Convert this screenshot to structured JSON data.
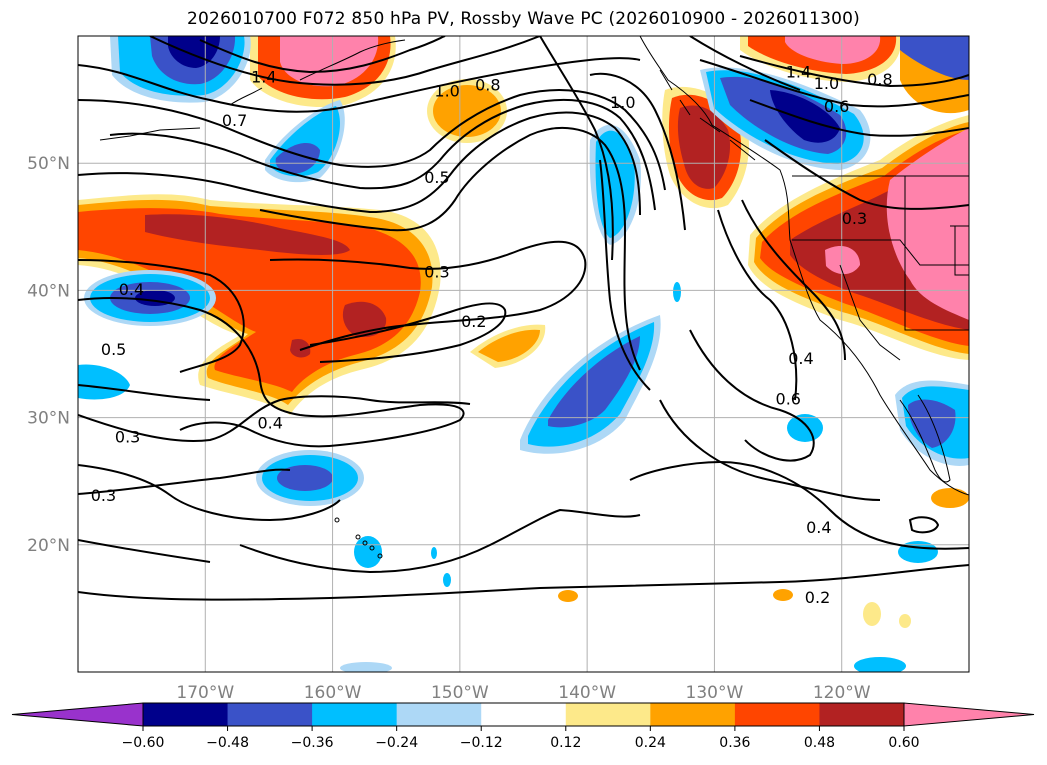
{
  "title": "2026010700 F072 850 hPa PV, Rossby Wave PC (2026010900 - 2026011300)",
  "map": {
    "lon_range": [
      -180,
      -110
    ],
    "lat_range": [
      10,
      60
    ],
    "lon_ticks": [
      -170,
      -160,
      -150,
      -140,
      -130,
      -120
    ],
    "lon_tick_labels": [
      "170°W",
      "160°W",
      "150°W",
      "140°W",
      "130°W",
      "120°W"
    ],
    "lat_ticks": [
      20,
      30,
      40,
      50
    ],
    "lat_tick_labels": [
      "20°N",
      "30°N",
      "40°N",
      "50°N"
    ],
    "grid": true
  },
  "colorbar": {
    "levels": [
      -0.6,
      -0.48,
      -0.36,
      -0.24,
      -0.12,
      0.12,
      0.24,
      0.36,
      0.48,
      0.6
    ],
    "tick_labels": [
      "−0.60",
      "−0.48",
      "−0.36",
      "−0.24",
      "−0.12",
      "0.12",
      "0.24",
      "0.36",
      "0.48",
      "0.60"
    ],
    "colors": [
      "#9932cc",
      "#00008b",
      "#3a52c8",
      "#00bfff",
      "#add8f6",
      "#ffffff",
      "#fde98a",
      "#ffa200",
      "#ff4500",
      "#b22222",
      "#ff82ab"
    ],
    "extend": "both"
  },
  "contour_labels": [
    {
      "text": "1.4",
      "lon": -165.4,
      "lat": 56.8
    },
    {
      "text": "1.4",
      "lon": -123.4,
      "lat": 57.2
    },
    {
      "text": "1.0",
      "lon": -121.2,
      "lat": 56.3
    },
    {
      "text": "0.6",
      "lon": -120.4,
      "lat": 54.5
    },
    {
      "text": "0.8",
      "lon": -117.0,
      "lat": 56.6
    },
    {
      "text": "0.7",
      "lon": -167.7,
      "lat": 53.4
    },
    {
      "text": "1.0",
      "lon": -151.0,
      "lat": 55.7
    },
    {
      "text": "0.8",
      "lon": -147.8,
      "lat": 56.2
    },
    {
      "text": "1.0",
      "lon": -137.2,
      "lat": 54.8
    },
    {
      "text": "0.5",
      "lon": -151.8,
      "lat": 48.9
    },
    {
      "text": "0.3",
      "lon": -119.0,
      "lat": 45.7
    },
    {
      "text": "0.4",
      "lon": -175.8,
      "lat": 40.1
    },
    {
      "text": "0.3",
      "lon": -151.8,
      "lat": 41.5
    },
    {
      "text": "0.5",
      "lon": -177.2,
      "lat": 35.4
    },
    {
      "text": "0.2",
      "lon": -148.9,
      "lat": 37.6
    },
    {
      "text": "0.4",
      "lon": -123.2,
      "lat": 34.7
    },
    {
      "text": "0.6",
      "lon": -124.2,
      "lat": 31.5
    },
    {
      "text": "0.4",
      "lon": -164.9,
      "lat": 29.6
    },
    {
      "text": "0.3",
      "lon": -176.1,
      "lat": 28.5
    },
    {
      "text": "0.3",
      "lon": -178.0,
      "lat": 23.9
    },
    {
      "text": "0.4",
      "lon": -121.8,
      "lat": 21.4
    },
    {
      "text": "0.2",
      "lon": -121.9,
      "lat": 15.9
    }
  ]
}
